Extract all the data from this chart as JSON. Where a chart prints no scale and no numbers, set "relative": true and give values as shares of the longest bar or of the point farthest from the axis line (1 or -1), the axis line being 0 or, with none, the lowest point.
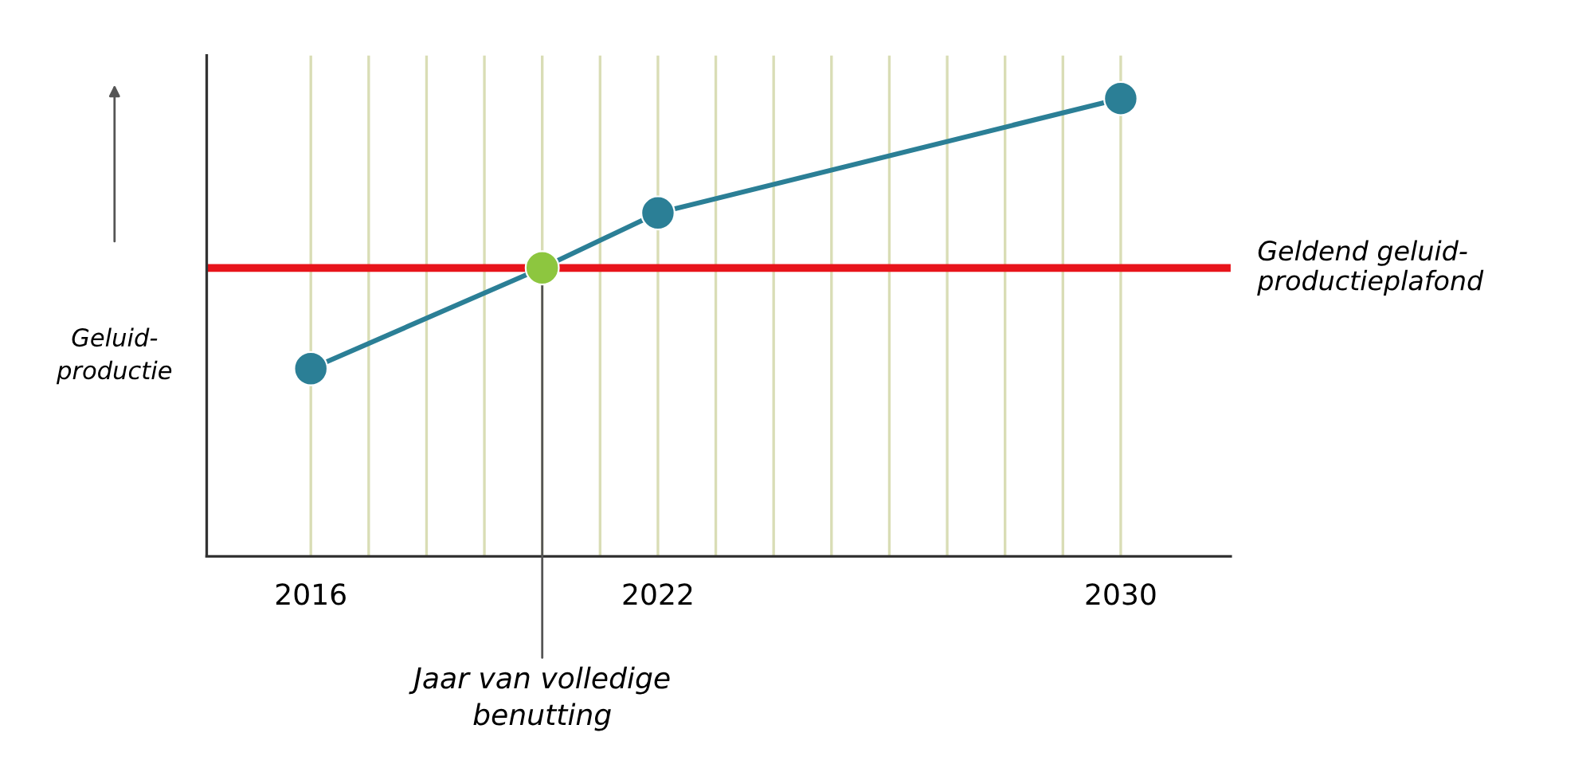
{
  "chart_data": {
    "type": "line",
    "relative": true,
    "x": [
      2016,
      2020,
      2022,
      2030
    ],
    "series": [
      {
        "color": "#2b7f96",
        "colors": [
          "#2b7f96",
          "#8dc63f",
          "#2b7f96",
          "#2b7f96"
        ],
        "values": [
          0.41,
          0.63,
          0.75,
          1
        ]
      }
    ],
    "ylabel": "Geluid-\nproductie",
    "xlim": [
      2014.2,
      2031.9
    ],
    "xticks": [
      2016,
      {
        "value": 2017,
        "label": null
      },
      {
        "value": 2018,
        "label": null
      },
      {
        "value": 2019,
        "label": null
      },
      {
        "value": 2020,
        "label": null
      },
      {
        "value": 2021,
        "label": null
      },
      2022,
      {
        "value": 2023,
        "label": null
      },
      {
        "value": 2024,
        "label": null
      },
      {
        "value": 2025,
        "label": null
      },
      {
        "value": 2026,
        "label": null
      },
      {
        "value": 2027,
        "label": null
      },
      {
        "value": 2028,
        "label": null
      },
      {
        "value": 2029,
        "label": null
      },
      2030
    ],
    "tick_labels": "x",
    "grid": "x",
    "marker": "circle",
    "line_style": "solid",
    "ref_lines": [
      {
        "axis": "y",
        "value": 0.63,
        "label": "Geldend geluid-\nproductieplafond",
        "color": "#e8141b"
      }
    ],
    "annotations": [
      {
        "text": "Jaar van volledige\nbenutting",
        "x": 2020,
        "y": 0.63
      }
    ]
  }
}
